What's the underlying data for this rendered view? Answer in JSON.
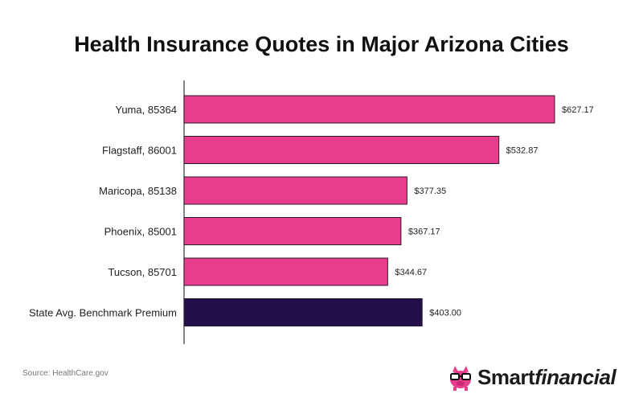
{
  "title": "Health Insurance Quotes in Major Arizona Cities",
  "source": "Source: HealthCare.gov",
  "brand": {
    "name_strong": "Smart",
    "name_italic": "financial"
  },
  "colors": {
    "bar": "#e83d8c",
    "benchmark": "#23104a",
    "axis": "#333333",
    "text": "#222222"
  },
  "chart_data": {
    "type": "bar",
    "orientation": "horizontal",
    "title": "Health Insurance Quotes in Major Arizona Cities",
    "categories": [
      "Yuma, 85364",
      "Flagstaff, 86001",
      "Maricopa, 85138",
      "Phoenix, 85001",
      "Tucson, 85701",
      "State Avg. Benchmark Premium"
    ],
    "values": [
      627.17,
      532.87,
      377.35,
      367.17,
      344.67,
      403.0
    ],
    "labels": [
      "$627.17",
      "$532.87",
      "$377.35",
      "$367.17",
      "$344.67",
      "$403.00"
    ],
    "highlight_index": 5,
    "xlim": [
      0,
      680
    ],
    "grid": false,
    "xlabel": "",
    "ylabel": ""
  }
}
